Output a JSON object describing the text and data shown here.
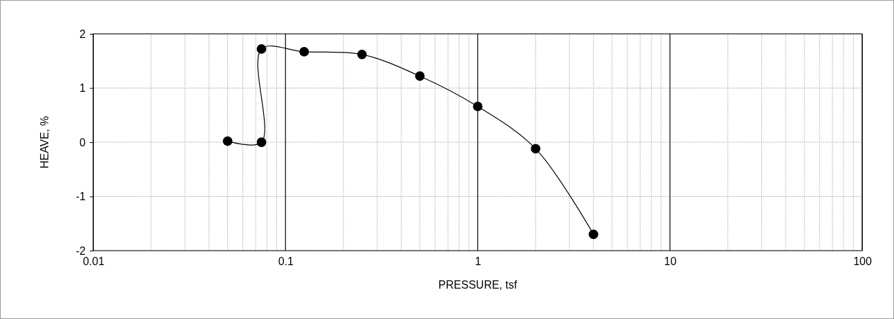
{
  "chart_data": {
    "type": "line",
    "xlabel": "PRESSURE, tsf",
    "ylabel": "HEAVE, %",
    "log": "x",
    "x": [
      0.05,
      0.075,
      0.075,
      0.125,
      0.25,
      0.5,
      1,
      2,
      4
    ],
    "series": [
      {
        "color": "#000000",
        "values": [
          0.02,
          0,
          1.72,
          1.67,
          1.62,
          1.22,
          0.66,
          -0.12,
          -1.7
        ]
      }
    ],
    "xlim": [
      0.01,
      100
    ],
    "xticks": [
      0.01,
      {
        "value": 0.02,
        "label": null
      },
      {
        "value": 0.03,
        "label": null
      },
      {
        "value": 0.04,
        "label": null
      },
      {
        "value": 0.05,
        "label": null
      },
      {
        "value": 0.06,
        "label": null
      },
      {
        "value": 0.07,
        "label": null
      },
      {
        "value": 0.08,
        "label": null
      },
      {
        "value": 0.09,
        "label": null
      },
      0.1,
      {
        "value": 0.2,
        "label": null
      },
      {
        "value": 0.3,
        "label": null
      },
      {
        "value": 0.4,
        "label": null
      },
      {
        "value": 0.5,
        "label": null
      },
      {
        "value": 0.6,
        "label": null
      },
      {
        "value": 0.7,
        "label": null
      },
      {
        "value": 0.8,
        "label": null
      },
      {
        "value": 0.9,
        "label": null
      },
      1,
      {
        "value": 2,
        "label": null
      },
      {
        "value": 3,
        "label": null
      },
      {
        "value": 4,
        "label": null
      },
      {
        "value": 5,
        "label": null
      },
      {
        "value": 6,
        "label": null
      },
      {
        "value": 7,
        "label": null
      },
      {
        "value": 8,
        "label": null
      },
      {
        "value": 9,
        "label": null
      },
      10,
      {
        "value": 20,
        "label": null
      },
      {
        "value": 30,
        "label": null
      },
      {
        "value": 40,
        "label": null
      },
      {
        "value": 50,
        "label": null
      },
      {
        "value": 60,
        "label": null
      },
      {
        "value": 70,
        "label": null
      },
      {
        "value": 80,
        "label": null
      },
      {
        "value": 90,
        "label": null
      },
      100
    ],
    "ylim": [
      -2,
      2
    ],
    "yticks": [
      -2,
      -1,
      0,
      1,
      2
    ],
    "grid": true,
    "marker": "circle",
    "line_style": "solid"
  }
}
